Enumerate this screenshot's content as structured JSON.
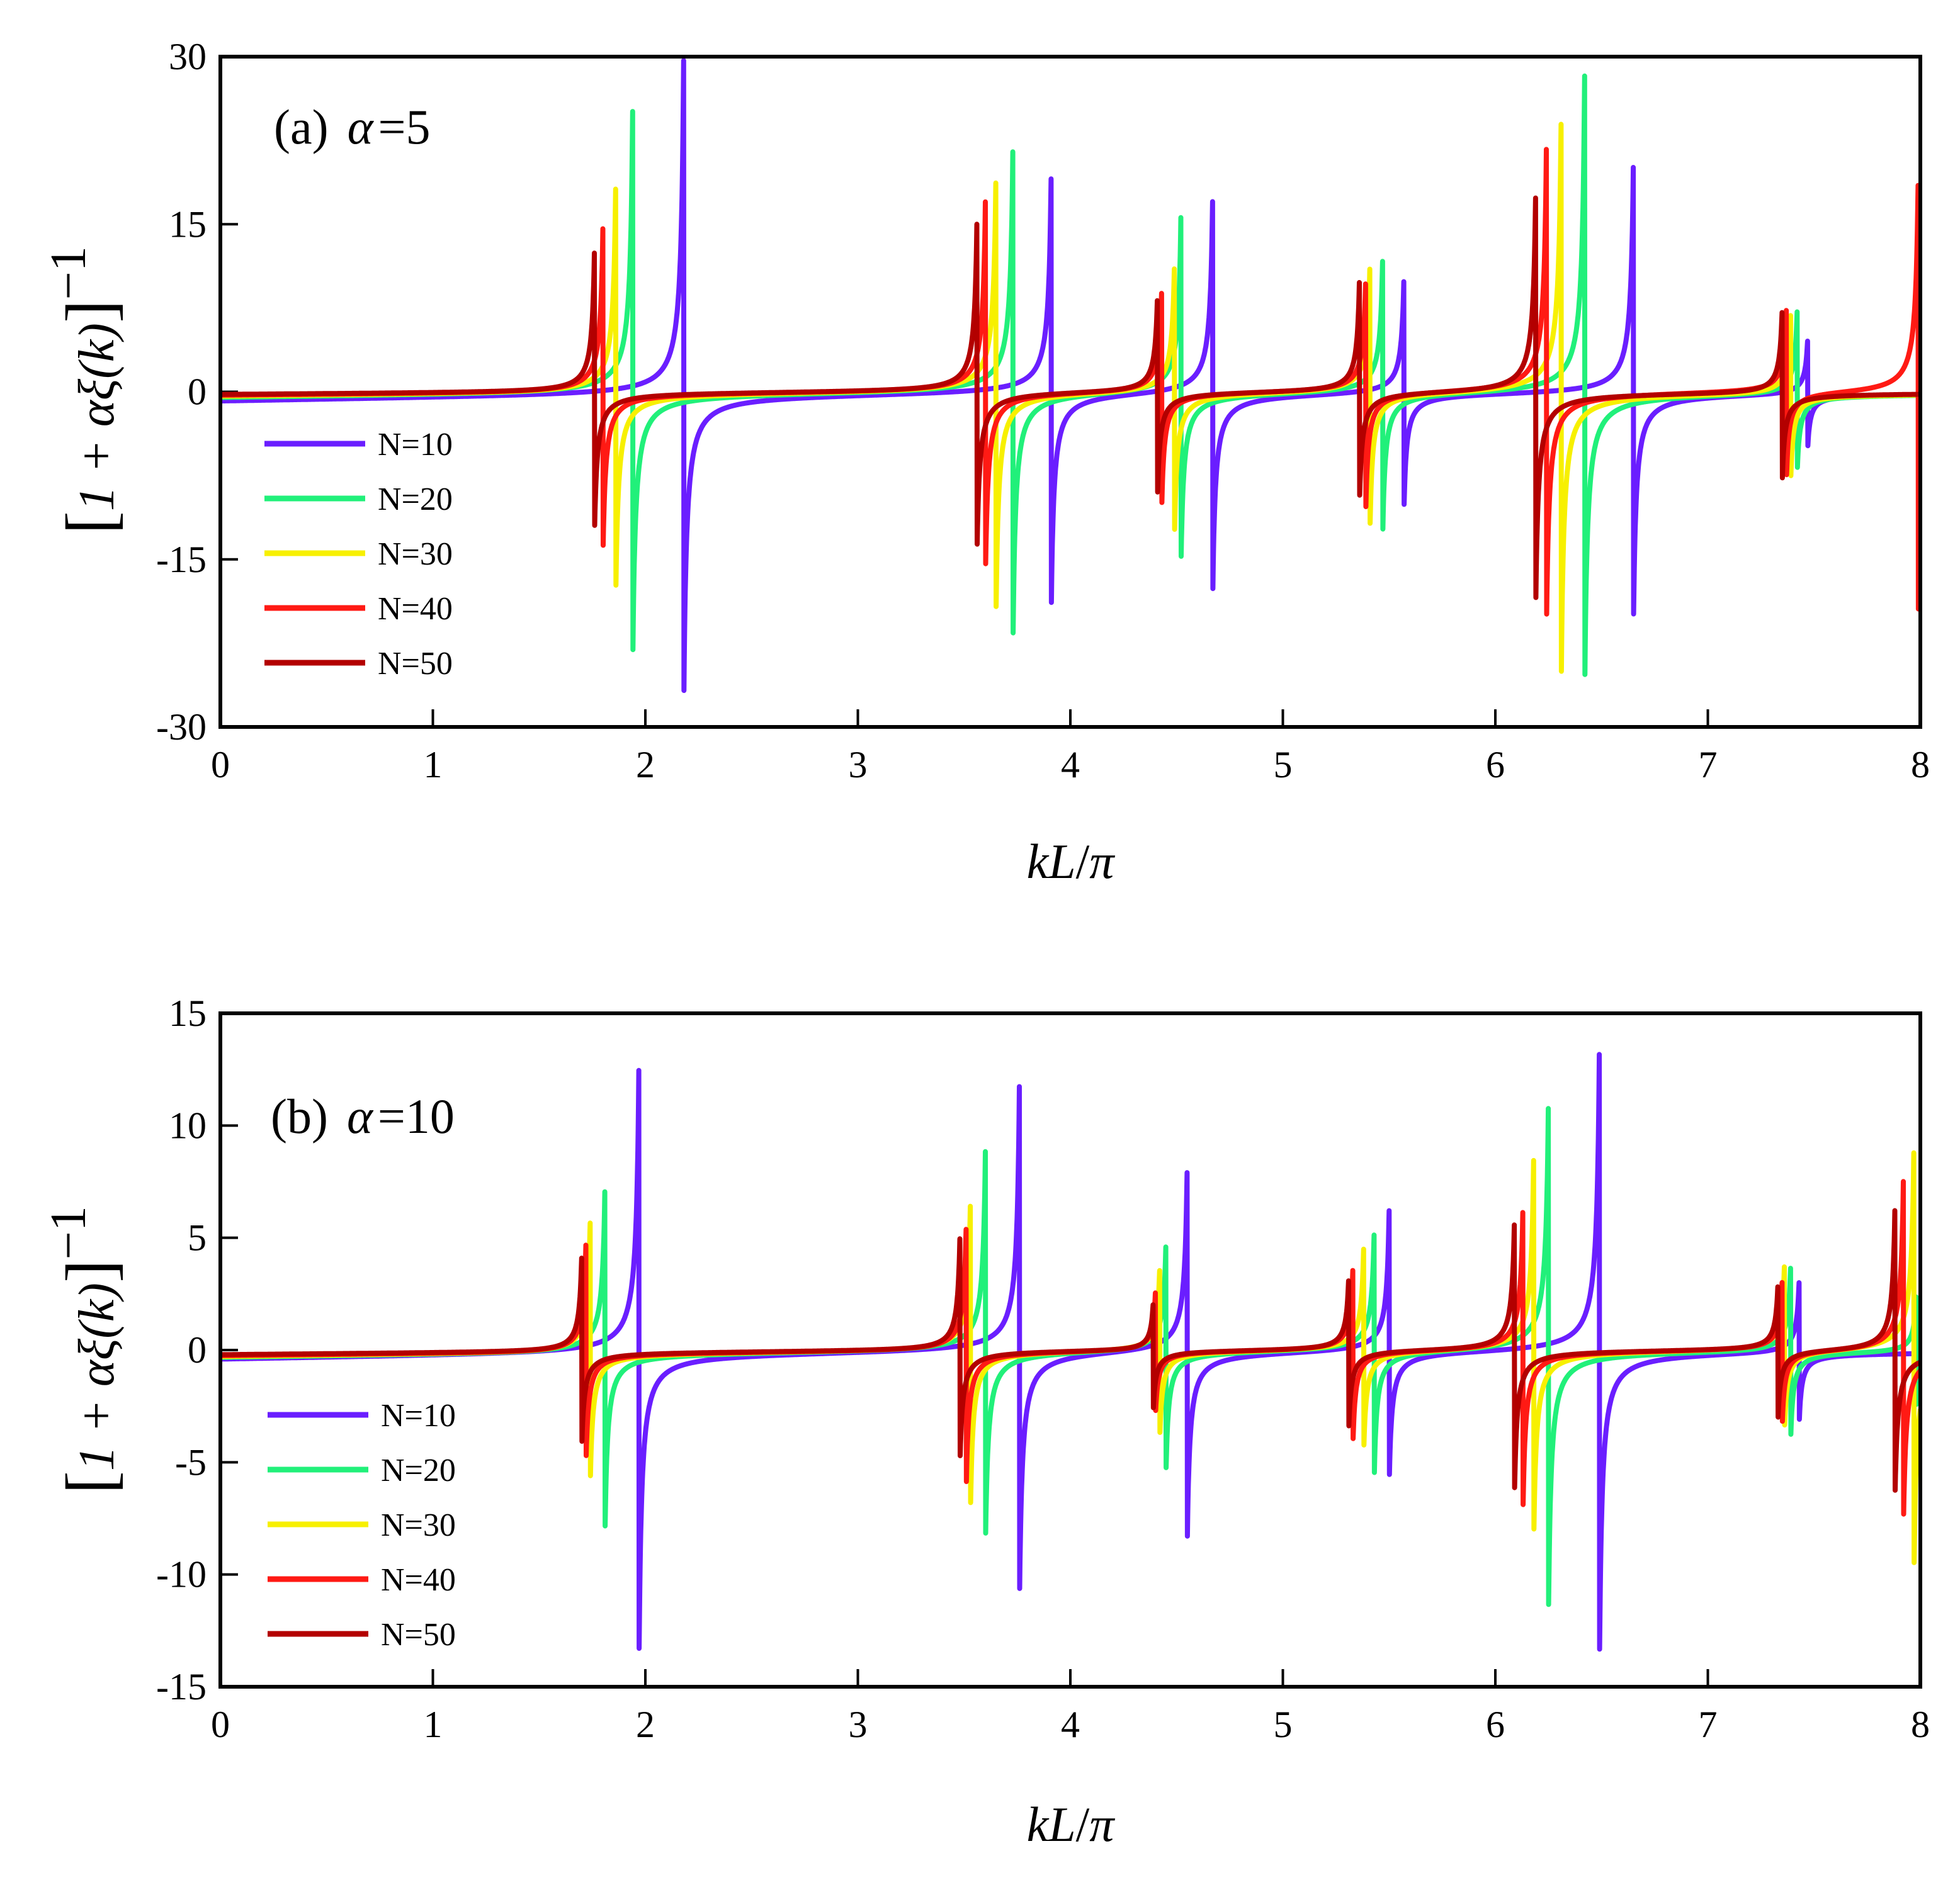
{
  "chart_data": [
    {
      "type": "line",
      "panel_label": "(a)",
      "alpha_symbol": "α",
      "alpha_value": "=5",
      "xlabel": "kL/π",
      "xlabel_parts": {
        "k": "k",
        "L": "L",
        "slash": "/",
        "pi": "π"
      },
      "ylabel_parts": {
        "open": "[",
        "inner": "1 + αξ(k)",
        "close": "]",
        "sup": "−1"
      },
      "xlim": [
        0,
        8
      ],
      "ylim": [
        -30,
        30
      ],
      "xticks": [
        0,
        1,
        2,
        3,
        4,
        5,
        6,
        7,
        8
      ],
      "xtick_labels": [
        "0",
        "1",
        "2",
        "3",
        "4",
        "5",
        "6",
        "7",
        "8"
      ],
      "yticks": [
        -30,
        -15,
        0,
        15,
        30
      ],
      "ytick_labels": [
        "-30",
        "-15",
        "0",
        "15",
        "30"
      ],
      "legend": {
        "position": "lower-left"
      },
      "series": [
        {
          "name": "N=10",
          "color": "#6a1eff",
          "baseline_start": -1.0,
          "resonances": [
            [
              2.18,
              30,
              -30
            ],
            [
              3.91,
              20.5,
              -20
            ],
            [
              4.67,
              18.5,
              -18.5
            ],
            [
              5.57,
              10.8,
              -10.5
            ],
            [
              6.65,
              21.7,
              -21
            ],
            [
              7.47,
              5.2,
              -4.8
            ]
          ]
        },
        {
          "name": "N=20",
          "color": "#21f07a",
          "baseline_start": -0.7,
          "resonances": [
            [
              1.94,
              25.3,
              -26
            ],
            [
              3.73,
              23,
              -23
            ],
            [
              4.52,
              15.8,
              -16.5
            ],
            [
              5.47,
              12.6,
              -13
            ],
            [
              6.42,
              28.5,
              -28.5
            ],
            [
              7.42,
              7.5,
              -7.3
            ]
          ]
        },
        {
          "name": "N=30",
          "color": "#f7f000",
          "baseline_start": -0.55,
          "resonances": [
            [
              1.86,
              18.3,
              -19.5
            ],
            [
              3.65,
              20,
              -20.5
            ],
            [
              4.49,
              11.9,
              -13
            ],
            [
              5.41,
              11.8,
              -12.5
            ],
            [
              6.31,
              25.8,
              -26.5
            ],
            [
              7.39,
              7.6,
              -7.7
            ]
          ]
        },
        {
          "name": "N=40",
          "color": "#ff1a14",
          "baseline_start": -0.45,
          "resonances": [
            [
              1.8,
              14.7,
              -15.5
            ],
            [
              3.6,
              17,
              -17.5
            ],
            [
              4.43,
              9.5,
              -10.5
            ],
            [
              5.39,
              10.3,
              -11
            ],
            [
              6.24,
              21.8,
              -22.5
            ],
            [
              7.37,
              7.8,
              -7.9
            ],
            [
              7.99,
              20,
              -20.5
            ]
          ]
        },
        {
          "name": "N=50",
          "color": "#b30000",
          "baseline_start": -0.35,
          "resonances": [
            [
              1.76,
              12.5,
              -13.5
            ],
            [
              3.56,
              15,
              -15.5
            ],
            [
              4.41,
              8.8,
              -9.5
            ],
            [
              5.36,
              9.8,
              -10.5
            ],
            [
              6.19,
              18.7,
              -19.5
            ],
            [
              7.35,
              7.8,
              -8
            ]
          ]
        }
      ]
    },
    {
      "type": "line",
      "panel_label": "(b)",
      "alpha_symbol": "α",
      "alpha_value": "=10",
      "xlabel": "kL/π",
      "xlabel_parts": {
        "k": "k",
        "L": "L",
        "slash": "/",
        "pi": "π"
      },
      "ylabel_parts": {
        "open": "[",
        "inner": "1 + αξ(k)",
        "close": "]",
        "sup": "−1"
      },
      "xlim": [
        0,
        8
      ],
      "ylim": [
        -15,
        15
      ],
      "xticks": [
        0,
        1,
        2,
        3,
        4,
        5,
        6,
        7,
        8
      ],
      "xtick_labels": [
        "0",
        "1",
        "2",
        "3",
        "4",
        "5",
        "6",
        "7",
        "8"
      ],
      "yticks": [
        -15,
        -10,
        -5,
        0,
        5,
        10,
        15
      ],
      "ytick_labels": [
        "-15",
        "-10",
        "-5",
        "0",
        "5",
        "10",
        "15"
      ],
      "legend": {
        "position": "lower-left"
      },
      "series": [
        {
          "name": "N=10",
          "color": "#6a1eff",
          "baseline_start": -0.5,
          "resonances": [
            [
              1.97,
              13.5,
              -14
            ],
            [
              3.76,
              11.8,
              -12
            ],
            [
              4.55,
              8.6,
              -8.7
            ],
            [
              5.5,
              6.3,
              -6.2
            ],
            [
              6.49,
              14.2,
              -14.1
            ],
            [
              7.43,
              3.4,
              -3.1
            ]
          ]
        },
        {
          "name": "N=20",
          "color": "#21f07a",
          "baseline_start": -0.4,
          "resonances": [
            [
              1.81,
              7.7,
              -8.2
            ],
            [
              3.6,
              8.9,
              -9.2
            ],
            [
              4.45,
              5,
              -5.5
            ],
            [
              5.43,
              5.5,
              -5.8
            ],
            [
              6.25,
              11.6,
              -12
            ],
            [
              7.39,
              4,
              -3.9
            ],
            [
              7.98,
              2.5,
              -2.6
            ]
          ]
        },
        {
          "name": "N=30",
          "color": "#f7f000",
          "baseline_start": -0.35,
          "resonances": [
            [
              1.74,
              5.8,
              -6.2
            ],
            [
              3.53,
              6.9,
              -7.2
            ],
            [
              4.42,
              3.6,
              -4.1
            ],
            [
              5.38,
              4.5,
              -4.8
            ],
            [
              6.18,
              8.5,
              -9
            ],
            [
              7.36,
              3.7,
              -3.8
            ],
            [
              7.97,
              9.5,
              -10
            ]
          ]
        },
        {
          "name": "N=40",
          "color": "#ff1a14",
          "baseline_start": -0.3,
          "resonances": [
            [
              1.72,
              4.8,
              -5.2
            ],
            [
              3.51,
              5.8,
              -6.2
            ],
            [
              4.4,
              2.6,
              -3
            ],
            [
              5.33,
              3.8,
              -4.2
            ],
            [
              6.13,
              6.6,
              -7.3
            ],
            [
              7.35,
              3.2,
              -3.4
            ],
            [
              7.92,
              7.6,
              -8.2
            ]
          ]
        },
        {
          "name": "N=50",
          "color": "#b30000",
          "baseline_start": -0.25,
          "resonances": [
            [
              1.7,
              4.2,
              -4.5
            ],
            [
              3.48,
              5,
              -5.3
            ],
            [
              4.39,
              2.2,
              -2.7
            ],
            [
              5.31,
              3.3,
              -3.6
            ],
            [
              6.09,
              6,
              -6.5
            ],
            [
              7.33,
              3,
              -3.2
            ],
            [
              7.88,
              6.3,
              -7
            ]
          ]
        }
      ]
    }
  ]
}
